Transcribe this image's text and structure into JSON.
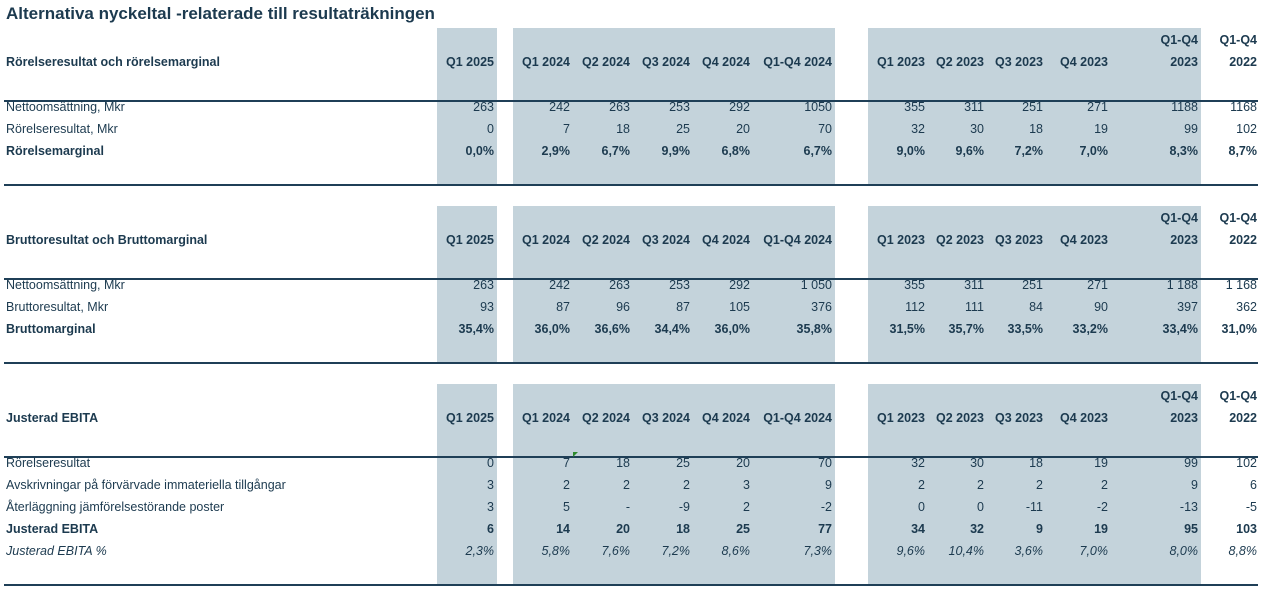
{
  "title": "Alternativa nyckeltal -relaterade till resultaträkningen",
  "sections": [
    {
      "header_label": "Rörelseresultat och  rörelsemarginal",
      "q1q4_label": "Q1-Q4",
      "columns": [
        "Q1 2025",
        "Q1 2024",
        "Q2 2024",
        "Q3 2024",
        "Q4 2024",
        "Q1-Q4 2024",
        "Q1 2023",
        "Q2 2023",
        "Q3 2023",
        "Q4 2023",
        "2023",
        "2022"
      ],
      "rows": [
        {
          "label": "Nettoomsättning, Mkr",
          "style": "normal",
          "values": [
            "263",
            "242",
            "263",
            "253",
            "292",
            "1050",
            "355",
            "311",
            "251",
            "271",
            "1188",
            "1168"
          ]
        },
        {
          "label": "Rörelseresultat, Mkr",
          "style": "normal",
          "values": [
            "0",
            "7",
            "18",
            "25",
            "20",
            "70",
            "32",
            "30",
            "18",
            "19",
            "99",
            "102"
          ]
        },
        {
          "label": "Rörelsemarginal",
          "style": "bold",
          "values": [
            "0,0%",
            "2,9%",
            "6,7%",
            "9,9%",
            "6,8%",
            "6,7%",
            "9,0%",
            "9,6%",
            "7,2%",
            "7,0%",
            "8,3%",
            "8,7%"
          ]
        }
      ]
    },
    {
      "header_label": "Bruttoresultat och Bruttomarginal",
      "q1q4_label": "Q1-Q4",
      "columns": [
        "Q1 2025",
        "Q1 2024",
        "Q2 2024",
        "Q3 2024",
        "Q4 2024",
        "Q1-Q4 2024",
        "Q1 2023",
        "Q2 2023",
        "Q3 2023",
        "Q4 2023",
        "2023",
        "2022"
      ],
      "rows": [
        {
          "label": "Nettoomsättning, Mkr",
          "style": "normal",
          "values": [
            "263",
            "242",
            "263",
            "253",
            "292",
            "1 050",
            "355",
            "311",
            "251",
            "271",
            "1 188",
            "1 168"
          ]
        },
        {
          "label": "Bruttoresultat, Mkr",
          "style": "normal",
          "values": [
            "93",
            "87",
            "96",
            "87",
            "105",
            "376",
            "112",
            "111",
            "84",
            "90",
            "397",
            "362"
          ]
        },
        {
          "label": "Bruttomarginal",
          "style": "bold",
          "values": [
            "35,4%",
            "36,0%",
            "36,6%",
            "34,4%",
            "36,0%",
            "35,8%",
            "31,5%",
            "35,7%",
            "33,5%",
            "33,2%",
            "33,4%",
            "31,0%"
          ]
        }
      ]
    },
    {
      "header_label": "Justerad EBITA",
      "q1q4_label": "Q1-Q4",
      "columns": [
        "Q1 2025",
        "Q1 2024",
        "Q2 2024",
        "Q3 2024",
        "Q4 2024",
        "Q1-Q4 2024",
        "Q1 2023",
        "Q2 2023",
        "Q3 2023",
        "Q4 2023",
        "2023",
        "2022"
      ],
      "rows": [
        {
          "label": "Rörelseresultat",
          "style": "normal",
          "values": [
            "0",
            "7",
            "18",
            "25",
            "20",
            "70",
            "32",
            "30",
            "18",
            "19",
            "99",
            "102"
          ]
        },
        {
          "label": "Avskrivningar på förvärvade immateriella tillgångar",
          "style": "normal",
          "values": [
            "3",
            "2",
            "2",
            "2",
            "3",
            "9",
            "2",
            "2",
            "2",
            "2",
            "9",
            "6"
          ]
        },
        {
          "label": "Återläggning jämförelsestörande poster",
          "style": "normal",
          "values": [
            "3",
            "5",
            "-",
            "-9",
            "2",
            "-2",
            "0",
            "0",
            "-11",
            "-2",
            "-13",
            "-5"
          ]
        },
        {
          "label": "Justerad EBITA",
          "style": "bold",
          "values": [
            "6",
            "14",
            "20",
            "18",
            "25",
            "77",
            "34",
            "32",
            "9",
            "19",
            "95",
            "103"
          ]
        },
        {
          "label": "Justerad EBITA %",
          "style": "italic",
          "values": [
            "2,3%",
            "5,8%",
            "7,6%",
            "7,2%",
            "8,6%",
            "7,3%",
            "9,6%",
            "10,4%",
            "3,6%",
            "7,0%",
            "8,0%",
            "8,8%"
          ]
        }
      ]
    }
  ],
  "colors": {
    "band": "#c4d3db",
    "text": "#1c3a4f",
    "rule": "#1f3f57",
    "flag": "#2e8b2e"
  }
}
